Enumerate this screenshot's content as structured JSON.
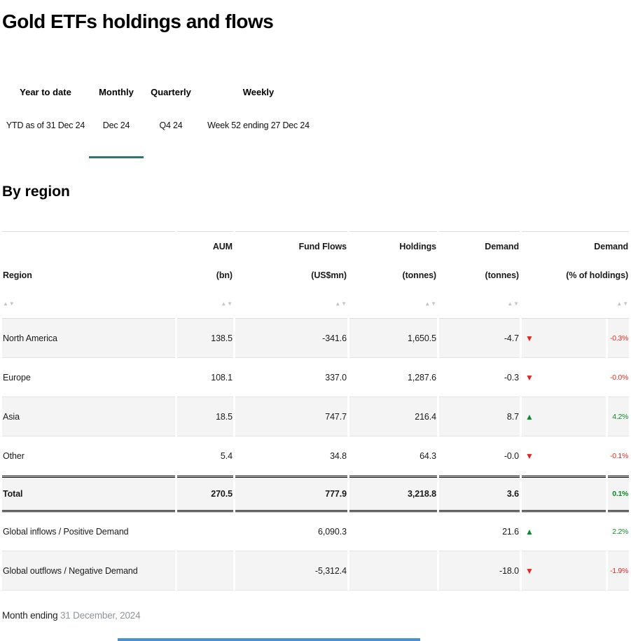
{
  "page": {
    "title": "Gold ETFs holdings and flows",
    "section_title": "By region",
    "footnote_label": "Month ending",
    "footnote_date": "31 December, 2024"
  },
  "tabs": [
    {
      "label": "Year to date",
      "sublabel": "YTD as of 31 Dec 24",
      "active": false
    },
    {
      "label": "Monthly",
      "sublabel": "Dec 24",
      "active": true
    },
    {
      "label": "Quarterly",
      "sublabel": "Q4 24",
      "active": false
    },
    {
      "label": "Weekly",
      "sublabel": "Week 52 ending 27 Dec 24",
      "active": false
    }
  ],
  "table": {
    "sort_up": "▲",
    "sort_down": "▼",
    "columns": [
      {
        "line1": "",
        "line2": "Region"
      },
      {
        "line1": "AUM",
        "line2": "(bn)"
      },
      {
        "line1": "Fund Flows",
        "line2": "(US$mn)"
      },
      {
        "line1": "Holdings",
        "line2": "(tonnes)"
      },
      {
        "line1": "Demand",
        "line2": "(tonnes)"
      },
      {
        "line1": "Demand",
        "line2": "(% of holdings)"
      }
    ],
    "rows": [
      {
        "region": "North America",
        "aum": "138.5",
        "flows": "-341.6",
        "holdings": "1,650.5",
        "demand": "-4.7",
        "arrow": "▼",
        "dir": "down",
        "pct": "-0.3%",
        "pct_class": "neg"
      },
      {
        "region": "Europe",
        "aum": "108.1",
        "flows": "337.0",
        "holdings": "1,287.6",
        "demand": "-0.3",
        "arrow": "▼",
        "dir": "down",
        "pct": "-0.0%",
        "pct_class": "neg"
      },
      {
        "region": "Asia",
        "aum": "18.5",
        "flows": "747.7",
        "holdings": "216.4",
        "demand": "8.7",
        "arrow": "▲",
        "dir": "up",
        "pct": "4.2%",
        "pct_class": "pos"
      },
      {
        "region": "Other",
        "aum": "5.4",
        "flows": "34.8",
        "holdings": "64.3",
        "demand": "-0.0",
        "arrow": "▼",
        "dir": "down",
        "pct": "-0.1%",
        "pct_class": "neg"
      }
    ],
    "total_row": {
      "region": "Total",
      "aum": "270.5",
      "flows": "777.9",
      "holdings": "3,218.8",
      "demand": "3.6",
      "arrow": "",
      "dir": "",
      "pct": "0.1%",
      "pct_class": "pos"
    },
    "summary_rows": [
      {
        "region": "Global inflows / Positive Demand",
        "aum": "",
        "flows": "6,090.3",
        "holdings": "",
        "demand": "21.6",
        "arrow": "▲",
        "dir": "up",
        "pct": "2.2%",
        "pct_class": "pos"
      },
      {
        "region": "Global outflows / Negative Demand",
        "aum": "",
        "flows": "-5,312.4",
        "holdings": "",
        "demand": "-18.0",
        "arrow": "▼",
        "dir": "down",
        "pct": "-1.9%",
        "pct_class": "neg"
      }
    ]
  },
  "colors": {
    "accent_teal": "#2b7672",
    "positive_green": "#0a8a28",
    "negative_red": "#e4251f",
    "bottom_bar_blue": "#4c90d4"
  }
}
